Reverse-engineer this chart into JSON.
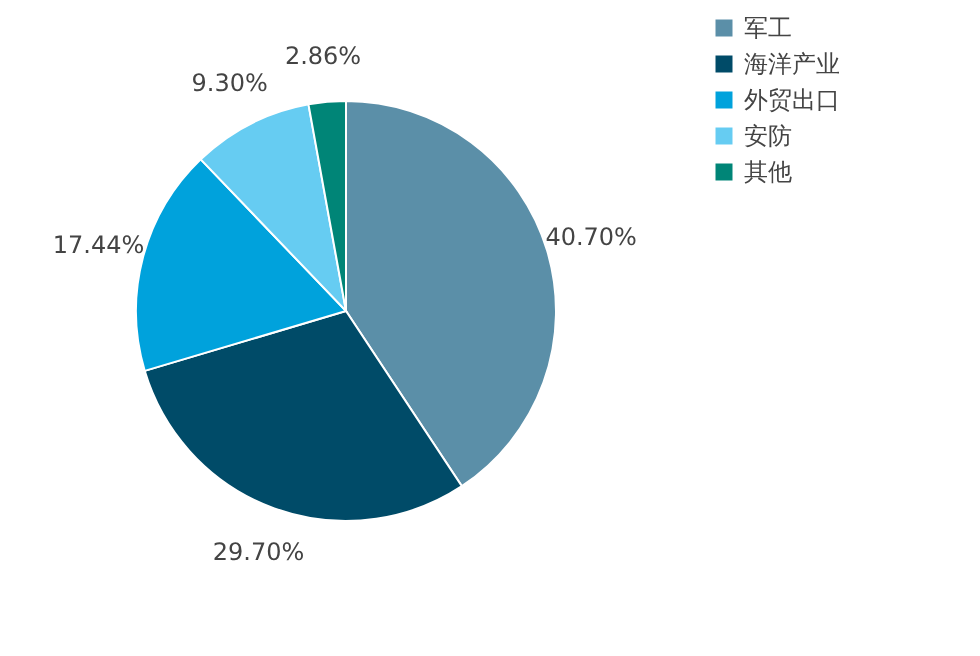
{
  "chart_data": {
    "type": "pie",
    "categories": [
      "军工",
      "海洋产业",
      "外贸出口",
      "安防",
      "其他"
    ],
    "values": [
      40.7,
      29.7,
      17.44,
      9.3,
      2.86
    ],
    "value_labels": [
      "40.70%",
      "29.70%",
      "17.44%",
      "9.30%",
      "2.86%"
    ],
    "colors": [
      "#5b8fa8",
      "#004b68",
      "#00a2dc",
      "#66ccf2",
      "#008577"
    ],
    "legend": "right"
  }
}
